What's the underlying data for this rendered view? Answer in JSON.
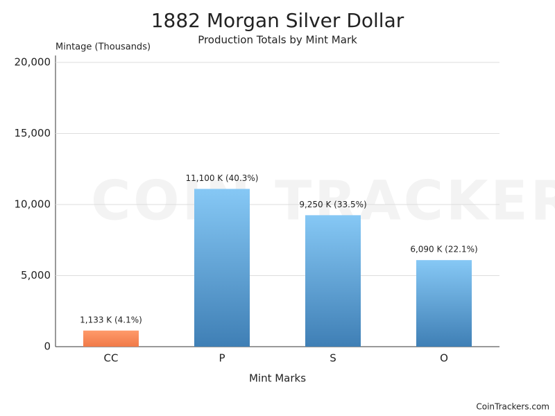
{
  "chart_data": {
    "type": "bar",
    "title": "1882 Morgan Silver Dollar",
    "subtitle": "Production Totals by Mint Mark",
    "y_label": "Mintage (Thousands)",
    "x_label": "Mint Marks",
    "watermark": "COIN TRACKERS",
    "footer": "CoinTrackers.com",
    "categories": [
      "CC",
      "P",
      "S",
      "O"
    ],
    "values": [
      1133,
      11100,
      9250,
      6090
    ],
    "value_labels": [
      "1,133 K (4.1%)",
      "11,100 K (40.3%)",
      "9,250 K (33.5%)",
      "6,090 K (22.1%)"
    ],
    "colors": [
      "#ff9a6a",
      "#86c8f5",
      "#86c8f5",
      "#86c8f5"
    ],
    "colors_bottom": [
      "#f07a48",
      "#3f7fb5",
      "#3f7fb5",
      "#3f7fb5"
    ],
    "ylim": [
      0,
      20000
    ],
    "yticks": [
      0,
      {
        "value": 5000,
        "label": "5,000"
      },
      {
        "value": 10000,
        "label": "10,000"
      },
      {
        "value": 15000,
        "label": "15,000"
      },
      {
        "value": 20000,
        "label": "20,000"
      }
    ],
    "grid": true
  }
}
